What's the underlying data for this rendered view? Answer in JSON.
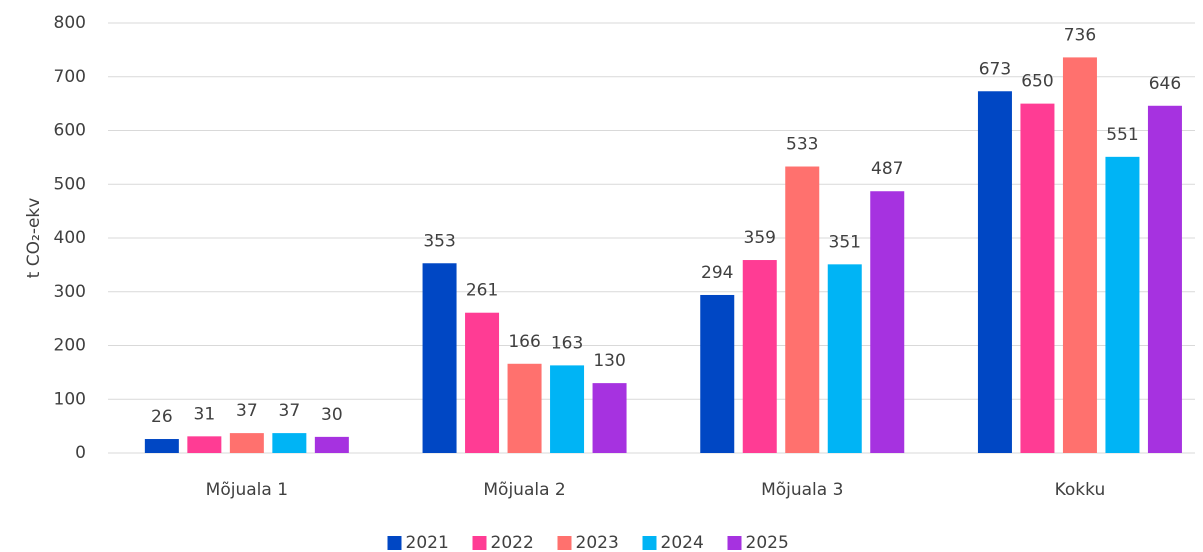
{
  "chart_data": {
    "type": "bar",
    "y_label": "t CO₂-ekv",
    "categories": [
      "Mõjuala 1",
      "Mõjuala 2",
      "Mõjuala 3",
      "Kokku"
    ],
    "series": [
      {
        "name": "2021",
        "color": "#0047c4",
        "values": [
          26,
          353,
          294,
          673
        ]
      },
      {
        "name": "2022",
        "color": "#ff3c94",
        "values": [
          31,
          261,
          359,
          650
        ]
      },
      {
        "name": "2023",
        "color": "#ff716e",
        "values": [
          37,
          166,
          533,
          736
        ]
      },
      {
        "name": "2024",
        "color": "#00b4f5",
        "values": [
          37,
          163,
          351,
          551
        ]
      },
      {
        "name": "2025",
        "color": "#a632e0",
        "values": [
          30,
          130,
          487,
          646
        ]
      }
    ],
    "ylim": [
      0,
      800
    ],
    "yticks": [
      0,
      100,
      200,
      300,
      400,
      500,
      600,
      700,
      800
    ],
    "grid": true,
    "legend": "bottom"
  }
}
